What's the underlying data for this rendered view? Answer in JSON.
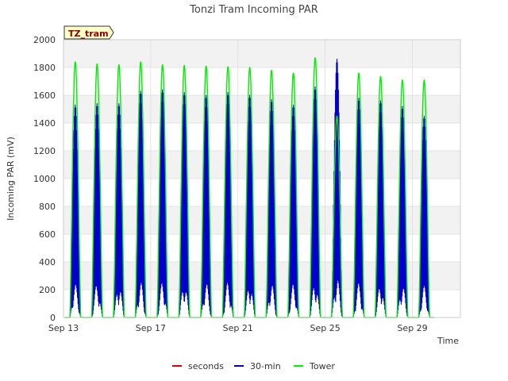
{
  "chart_data": {
    "type": "line",
    "title": "Tonzi Tram Incoming PAR",
    "tag": "TZ_tram",
    "xlabel": "Time",
    "ylabel": "Incoming PAR (mV)",
    "ylim": [
      0,
      2000
    ],
    "y_ticks": [
      "0",
      "200",
      "400",
      "600",
      "800",
      "1000",
      "1200",
      "1400",
      "1600",
      "1800",
      "2000"
    ],
    "x_ticks": [
      "Sep 13",
      "Sep 17",
      "Sep 21",
      "Sep 25",
      "Sep 29"
    ],
    "x_tick_days": [
      13,
      17,
      21,
      25,
      29
    ],
    "xlim_days": [
      13,
      31.2
    ],
    "grid": true,
    "legend_position": "bottom",
    "colors": {
      "seconds": "#dd0000",
      "30-min": "#0000cc",
      "Tower": "#00ee00",
      "band": "#f2f2f2",
      "grid": "#dddddd"
    },
    "series": [
      {
        "name": "seconds",
        "x": [],
        "y": []
      },
      {
        "name": "30-min",
        "daily_peak": {
          "days": [
            13,
            14,
            15,
            16,
            17,
            18,
            19,
            20,
            21,
            22,
            23,
            24,
            25,
            26,
            27,
            28,
            29
          ],
          "values": [
            1530,
            1540,
            1540,
            1630,
            1640,
            1620,
            1600,
            1620,
            1600,
            1570,
            1530,
            1660,
            1860,
            1580,
            1560,
            1520,
            1450
          ]
        }
      },
      {
        "name": "Tower",
        "daily_peak": {
          "days": [
            13,
            14,
            15,
            16,
            17,
            18,
            19,
            20,
            21,
            22,
            23,
            24,
            25,
            26,
            27,
            28,
            29
          ],
          "values": [
            1840,
            1825,
            1820,
            1840,
            1820,
            1815,
            1810,
            1805,
            1800,
            1780,
            1760,
            1870,
            1450,
            1760,
            1735,
            1710,
            1710
          ]
        }
      }
    ]
  }
}
